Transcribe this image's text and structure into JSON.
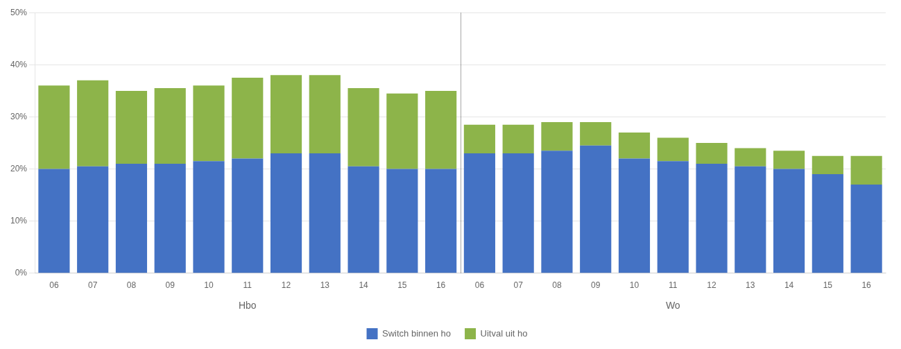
{
  "chart_data": {
    "type": "bar",
    "stacked": true,
    "categories": [
      "06",
      "07",
      "08",
      "09",
      "10",
      "11",
      "12",
      "13",
      "14",
      "15",
      "16",
      "06",
      "07",
      "08",
      "09",
      "10",
      "11",
      "12",
      "13",
      "14",
      "15",
      "16"
    ],
    "groups": [
      "Hbo",
      "Wo"
    ],
    "series": [
      {
        "name": "Switch binnen ho",
        "color": "#4472C4",
        "values": [
          20.0,
          20.5,
          21.0,
          21.0,
          21.5,
          22.0,
          23.0,
          23.0,
          20.5,
          20.0,
          20.0,
          23.0,
          23.0,
          23.5,
          24.5,
          22.0,
          21.5,
          21.0,
          20.5,
          20.0,
          19.0,
          17.0
        ]
      },
      {
        "name": "Uitval uit ho",
        "color": "#8DB44A",
        "values": [
          16.0,
          16.5,
          14.0,
          14.5,
          14.5,
          15.5,
          15.0,
          15.0,
          15.0,
          14.5,
          15.0,
          5.5,
          5.5,
          5.5,
          4.5,
          5.0,
          4.5,
          4.0,
          3.5,
          3.5,
          3.5,
          5.5
        ]
      }
    ],
    "ylim": [
      0,
      50
    ],
    "yticks": [
      {
        "value": 0,
        "label": "0%"
      },
      {
        "value": 10,
        "label": "10%"
      },
      {
        "value": 20,
        "label": "20%"
      },
      {
        "value": 30,
        "label": "30%"
      },
      {
        "value": 40,
        "label": "40%"
      },
      {
        "value": 50,
        "label": "50%"
      }
    ],
    "grid": true,
    "legend": "bottom"
  }
}
